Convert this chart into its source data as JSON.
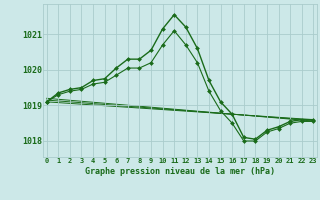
{
  "background_color": "#cce8e8",
  "grid_color": "#aacccc",
  "line_color": "#1a6b1a",
  "marker_color": "#1a6b1a",
  "xlabel": "Graphe pression niveau de la mer (hPa)",
  "xlabel_fontsize": 6.0,
  "xtick_labels": [
    "0",
    "1",
    "2",
    "3",
    "4",
    "5",
    "6",
    "7",
    "8",
    "9",
    "10",
    "11",
    "12",
    "13",
    "14",
    "15",
    "16",
    "17",
    "18",
    "19",
    "20",
    "21",
    "22",
    "23"
  ],
  "ytick_values": [
    1018,
    1019,
    1020,
    1021
  ],
  "ylim": [
    1017.55,
    1021.85
  ],
  "xlim": [
    -0.3,
    23.3
  ],
  "series1_x": [
    0,
    1,
    2,
    3,
    4,
    5,
    6,
    7,
    8,
    9,
    10,
    11,
    12,
    13,
    14,
    15,
    16,
    17,
    18,
    19,
    20,
    21,
    22,
    23
  ],
  "series1_y": [
    1019.1,
    1019.35,
    1019.45,
    1019.5,
    1019.7,
    1019.75,
    1020.05,
    1020.3,
    1020.3,
    1020.55,
    1021.15,
    1021.55,
    1021.2,
    1020.6,
    1019.7,
    1019.1,
    1018.75,
    1018.1,
    1018.05,
    1018.3,
    1018.4,
    1018.55,
    1018.6,
    1018.6
  ],
  "series2_x": [
    0,
    1,
    2,
    3,
    4,
    5,
    6,
    7,
    8,
    9,
    10,
    11,
    12,
    13,
    14,
    15,
    16,
    17,
    18,
    19,
    20,
    21,
    22,
    23
  ],
  "series2_y": [
    1019.1,
    1019.3,
    1019.4,
    1019.45,
    1019.6,
    1019.65,
    1019.85,
    1020.05,
    1020.05,
    1020.2,
    1020.7,
    1021.1,
    1020.7,
    1020.2,
    1019.4,
    1018.85,
    1018.5,
    1018.0,
    1018.0,
    1018.25,
    1018.35,
    1018.5,
    1018.55,
    1018.55
  ],
  "series3_x": [
    0,
    23
  ],
  "series3_y": [
    1019.1,
    1018.6
  ],
  "series4_x": [
    0,
    23
  ],
  "series4_y": [
    1019.15,
    1018.58
  ],
  "series5_x": [
    0,
    23
  ],
  "series5_y": [
    1019.2,
    1018.56
  ]
}
